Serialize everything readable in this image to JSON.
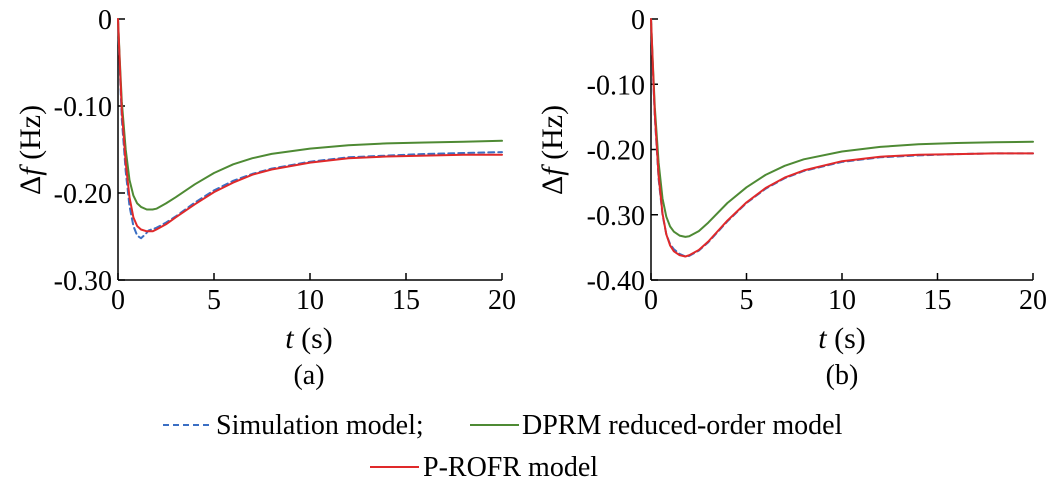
{
  "chart_data": [
    {
      "type": "line",
      "panel_label": "(a)",
      "xlabel": {
        "var": "t",
        "unit": " (s)"
      },
      "ylabel": {
        "prefix": "Δ",
        "var": "f",
        "unit": " (Hz)"
      },
      "xlim": [
        0,
        20
      ],
      "ylim": [
        -0.3,
        0
      ],
      "xticks": [
        0,
        5,
        10,
        15,
        20
      ],
      "xtick_labels": [
        "0",
        "5",
        "10",
        "15",
        "20"
      ],
      "yticks": [
        0,
        -0.1,
        -0.2,
        -0.3
      ],
      "ytick_labels": [
        "0",
        "-0.10",
        "-0.20",
        "-0.30"
      ],
      "grid": false,
      "series": [
        {
          "name": "Simulation model",
          "color": "#3b6fc4",
          "dash": true,
          "x": [
            0,
            0.1,
            0.2,
            0.4,
            0.6,
            0.8,
            1.0,
            1.2,
            1.4,
            1.6,
            2.0,
            2.5,
            3.0,
            4.0,
            5.0,
            6.0,
            7.0,
            8.0,
            10.0,
            12.0,
            14.0,
            16.0,
            18.0,
            20.0
          ],
          "y": [
            0,
            -0.06,
            -0.115,
            -0.175,
            -0.215,
            -0.238,
            -0.249,
            -0.252,
            -0.248,
            -0.243,
            -0.24,
            -0.234,
            -0.227,
            -0.211,
            -0.197,
            -0.186,
            -0.178,
            -0.172,
            -0.164,
            -0.159,
            -0.157,
            -0.155,
            -0.154,
            -0.153
          ]
        },
        {
          "name": "DPRM reduced-order model",
          "color": "#4e8a34",
          "dash": false,
          "x": [
            0,
            0.1,
            0.2,
            0.4,
            0.6,
            0.8,
            1.0,
            1.2,
            1.5,
            1.8,
            2.0,
            2.5,
            3.0,
            4.0,
            5.0,
            6.0,
            7.0,
            8.0,
            10.0,
            12.0,
            14.0,
            16.0,
            18.0,
            20.0
          ],
          "y": [
            0,
            -0.05,
            -0.095,
            -0.15,
            -0.185,
            -0.203,
            -0.212,
            -0.216,
            -0.219,
            -0.219,
            -0.218,
            -0.212,
            -0.205,
            -0.19,
            -0.177,
            -0.167,
            -0.16,
            -0.155,
            -0.149,
            -0.145,
            -0.143,
            -0.142,
            -0.141,
            -0.14
          ]
        },
        {
          "name": "P-ROFR model",
          "color": "#e0292a",
          "dash": false,
          "x": [
            0,
            0.1,
            0.2,
            0.4,
            0.6,
            0.8,
            1.0,
            1.2,
            1.5,
            1.8,
            2.0,
            2.5,
            3.0,
            4.0,
            5.0,
            6.0,
            7.0,
            8.0,
            10.0,
            12.0,
            14.0,
            16.0,
            18.0,
            20.0
          ],
          "y": [
            0,
            -0.055,
            -0.105,
            -0.165,
            -0.205,
            -0.228,
            -0.238,
            -0.242,
            -0.244,
            -0.244,
            -0.242,
            -0.236,
            -0.228,
            -0.213,
            -0.199,
            -0.188,
            -0.179,
            -0.173,
            -0.165,
            -0.16,
            -0.158,
            -0.157,
            -0.156,
            -0.156
          ]
        }
      ]
    },
    {
      "type": "line",
      "panel_label": "(b)",
      "xlabel": {
        "var": "t",
        "unit": " (s)"
      },
      "ylabel": {
        "prefix": "Δ",
        "var": "f",
        "unit": " (Hz)"
      },
      "xlim": [
        0,
        20
      ],
      "ylim": [
        -0.4,
        0
      ],
      "xticks": [
        0,
        5,
        10,
        15,
        20
      ],
      "xtick_labels": [
        "0",
        "5",
        "10",
        "15",
        "20"
      ],
      "yticks": [
        0,
        -0.1,
        -0.2,
        -0.3,
        -0.4
      ],
      "ytick_labels": [
        "0",
        "-0.10",
        "-0.20",
        "-0.30",
        "-0.40"
      ],
      "grid": false,
      "series": [
        {
          "name": "Simulation model",
          "color": "#3b6fc4",
          "dash": true,
          "x": [
            0,
            0.1,
            0.2,
            0.4,
            0.6,
            0.8,
            1.0,
            1.2,
            1.5,
            1.8,
            2.0,
            2.5,
            3.0,
            4.0,
            5.0,
            6.0,
            7.0,
            8.0,
            10.0,
            12.0,
            14.0,
            16.0,
            18.0,
            20.0
          ],
          "y": [
            0,
            -0.08,
            -0.15,
            -0.245,
            -0.3,
            -0.33,
            -0.345,
            -0.353,
            -0.36,
            -0.364,
            -0.363,
            -0.355,
            -0.342,
            -0.31,
            -0.282,
            -0.26,
            -0.244,
            -0.233,
            -0.219,
            -0.212,
            -0.209,
            -0.207,
            -0.206,
            -0.206
          ]
        },
        {
          "name": "DPRM reduced-order model",
          "color": "#4e8a34",
          "dash": false,
          "x": [
            0,
            0.1,
            0.2,
            0.4,
            0.6,
            0.8,
            1.0,
            1.2,
            1.5,
            1.8,
            2.0,
            2.5,
            3.0,
            4.0,
            5.0,
            6.0,
            7.0,
            8.0,
            10.0,
            12.0,
            14.0,
            16.0,
            18.0,
            20.0
          ],
          "y": [
            0,
            -0.07,
            -0.135,
            -0.22,
            -0.275,
            -0.303,
            -0.318,
            -0.326,
            -0.332,
            -0.334,
            -0.333,
            -0.325,
            -0.312,
            -0.282,
            -0.258,
            -0.239,
            -0.225,
            -0.215,
            -0.203,
            -0.196,
            -0.192,
            -0.19,
            -0.189,
            -0.188
          ]
        },
        {
          "name": "P-ROFR model",
          "color": "#e0292a",
          "dash": false,
          "x": [
            0,
            0.1,
            0.2,
            0.4,
            0.6,
            0.8,
            1.0,
            1.2,
            1.5,
            1.8,
            2.0,
            2.5,
            3.0,
            4.0,
            5.0,
            6.0,
            7.0,
            8.0,
            10.0,
            12.0,
            14.0,
            16.0,
            18.0,
            20.0
          ],
          "y": [
            0,
            -0.075,
            -0.145,
            -0.24,
            -0.298,
            -0.33,
            -0.347,
            -0.356,
            -0.362,
            -0.364,
            -0.362,
            -0.354,
            -0.341,
            -0.309,
            -0.281,
            -0.259,
            -0.243,
            -0.232,
            -0.218,
            -0.211,
            -0.208,
            -0.207,
            -0.206,
            -0.206
          ]
        }
      ]
    }
  ],
  "legend": {
    "placement": "bottom-center",
    "items": [
      {
        "label": "Simulation model;",
        "color": "#3b6fc4",
        "dash": true
      },
      {
        "label": "DPRM reduced-order model",
        "color": "#4e8a34",
        "dash": false
      },
      {
        "label": "P-ROFR model",
        "color": "#e0292a",
        "dash": false
      }
    ]
  }
}
